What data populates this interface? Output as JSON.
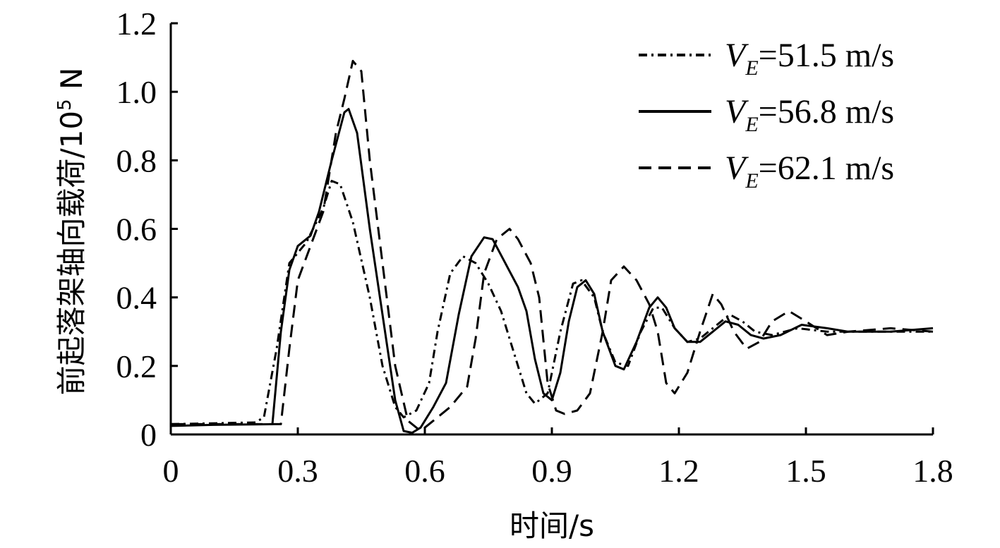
{
  "chart_data": {
    "type": "line",
    "xlabel": "时间/s",
    "ylabel_main": "前起落架轴向载荷/10",
    "ylabel_exp": "5",
    "ylabel_unit": " N",
    "xlim": [
      0,
      1.8
    ],
    "ylim": [
      0,
      1.2
    ],
    "x_ticks": [
      "0",
      "0.3",
      "0.6",
      "0.9",
      "1.2",
      "1.5",
      "1.8"
    ],
    "y_ticks": [
      "0",
      "0.2",
      "0.4",
      "0.6",
      "0.8",
      "1.0",
      "1.2"
    ],
    "grid": false,
    "legend_position": "top-right",
    "series": [
      {
        "name": "V_E=51.5 m/s",
        "legend_var": "V",
        "legend_sub": "E",
        "legend_val": "=51.5 m/s",
        "style": "dashdot",
        "points": [
          [
            0,
            0.03
          ],
          [
            0.2,
            0.035
          ],
          [
            0.22,
            0.05
          ],
          [
            0.25,
            0.25
          ],
          [
            0.28,
            0.5
          ],
          [
            0.32,
            0.56
          ],
          [
            0.36,
            0.66
          ],
          [
            0.38,
            0.74
          ],
          [
            0.4,
            0.73
          ],
          [
            0.43,
            0.62
          ],
          [
            0.47,
            0.4
          ],
          [
            0.5,
            0.2
          ],
          [
            0.53,
            0.08
          ],
          [
            0.55,
            0.05
          ],
          [
            0.58,
            0.07
          ],
          [
            0.61,
            0.15
          ],
          [
            0.63,
            0.3
          ],
          [
            0.66,
            0.47
          ],
          [
            0.69,
            0.52
          ],
          [
            0.72,
            0.5
          ],
          [
            0.75,
            0.44
          ],
          [
            0.78,
            0.36
          ],
          [
            0.81,
            0.24
          ],
          [
            0.84,
            0.12
          ],
          [
            0.86,
            0.09
          ],
          [
            0.89,
            0.12
          ],
          [
            0.92,
            0.3
          ],
          [
            0.95,
            0.44
          ],
          [
            0.97,
            0.45
          ],
          [
            1.0,
            0.4
          ],
          [
            1.02,
            0.3
          ],
          [
            1.05,
            0.21
          ],
          [
            1.08,
            0.2
          ],
          [
            1.11,
            0.3
          ],
          [
            1.14,
            0.37
          ],
          [
            1.16,
            0.37
          ],
          [
            1.19,
            0.31
          ],
          [
            1.22,
            0.27
          ],
          [
            1.25,
            0.28
          ],
          [
            1.28,
            0.31
          ],
          [
            1.32,
            0.35
          ],
          [
            1.35,
            0.33
          ],
          [
            1.38,
            0.3
          ],
          [
            1.42,
            0.29
          ],
          [
            1.48,
            0.31
          ],
          [
            1.55,
            0.3
          ],
          [
            1.65,
            0.3
          ],
          [
            1.8,
            0.3
          ]
        ]
      },
      {
        "name": "V_E=56.8 m/s",
        "legend_var": "V",
        "legend_sub": "E",
        "legend_val": "=56.8 m/s",
        "style": "solid",
        "points": [
          [
            0,
            0.025
          ],
          [
            0.1,
            0.028
          ],
          [
            0.24,
            0.03
          ],
          [
            0.26,
            0.3
          ],
          [
            0.28,
            0.48
          ],
          [
            0.3,
            0.55
          ],
          [
            0.33,
            0.58
          ],
          [
            0.35,
            0.65
          ],
          [
            0.38,
            0.8
          ],
          [
            0.41,
            0.94
          ],
          [
            0.42,
            0.95
          ],
          [
            0.44,
            0.88
          ],
          [
            0.47,
            0.6
          ],
          [
            0.5,
            0.35
          ],
          [
            0.53,
            0.1
          ],
          [
            0.55,
            0.01
          ],
          [
            0.57,
            0.005
          ],
          [
            0.59,
            0.02
          ],
          [
            0.62,
            0.08
          ],
          [
            0.65,
            0.15
          ],
          [
            0.68,
            0.35
          ],
          [
            0.71,
            0.52
          ],
          [
            0.74,
            0.575
          ],
          [
            0.76,
            0.57
          ],
          [
            0.79,
            0.5
          ],
          [
            0.82,
            0.43
          ],
          [
            0.84,
            0.36
          ],
          [
            0.86,
            0.22
          ],
          [
            0.88,
            0.12
          ],
          [
            0.9,
            0.1
          ],
          [
            0.92,
            0.18
          ],
          [
            0.94,
            0.33
          ],
          [
            0.96,
            0.43
          ],
          [
            0.98,
            0.45
          ],
          [
            1.0,
            0.41
          ],
          [
            1.02,
            0.3
          ],
          [
            1.05,
            0.2
          ],
          [
            1.07,
            0.19
          ],
          [
            1.1,
            0.27
          ],
          [
            1.13,
            0.37
          ],
          [
            1.15,
            0.4
          ],
          [
            1.17,
            0.37
          ],
          [
            1.19,
            0.31
          ],
          [
            1.22,
            0.27
          ],
          [
            1.25,
            0.27
          ],
          [
            1.28,
            0.3
          ],
          [
            1.31,
            0.33
          ],
          [
            1.34,
            0.32
          ],
          [
            1.37,
            0.29
          ],
          [
            1.4,
            0.28
          ],
          [
            1.44,
            0.29
          ],
          [
            1.49,
            0.32
          ],
          [
            1.55,
            0.31
          ],
          [
            1.6,
            0.3
          ],
          [
            1.7,
            0.3
          ],
          [
            1.8,
            0.31
          ]
        ]
      },
      {
        "name": "V_E=62.1 m/s",
        "legend_var": "V",
        "legend_sub": "E",
        "legend_val": "=62.1 m/s",
        "style": "dashed",
        "points": [
          [
            0,
            0.03
          ],
          [
            0.24,
            0.03
          ],
          [
            0.26,
            0.03
          ],
          [
            0.28,
            0.25
          ],
          [
            0.3,
            0.45
          ],
          [
            0.33,
            0.55
          ],
          [
            0.36,
            0.65
          ],
          [
            0.39,
            0.88
          ],
          [
            0.41,
            0.98
          ],
          [
            0.43,
            1.09
          ],
          [
            0.45,
            1.06
          ],
          [
            0.47,
            0.8
          ],
          [
            0.5,
            0.5
          ],
          [
            0.53,
            0.2
          ],
          [
            0.56,
            0.04
          ],
          [
            0.59,
            0.01
          ],
          [
            0.62,
            0.04
          ],
          [
            0.66,
            0.08
          ],
          [
            0.7,
            0.14
          ],
          [
            0.72,
            0.28
          ],
          [
            0.74,
            0.47
          ],
          [
            0.77,
            0.57
          ],
          [
            0.8,
            0.6
          ],
          [
            0.82,
            0.57
          ],
          [
            0.85,
            0.5
          ],
          [
            0.87,
            0.4
          ],
          [
            0.89,
            0.15
          ],
          [
            0.91,
            0.07
          ],
          [
            0.93,
            0.06
          ],
          [
            0.96,
            0.07
          ],
          [
            0.99,
            0.12
          ],
          [
            1.02,
            0.3
          ],
          [
            1.04,
            0.45
          ],
          [
            1.07,
            0.49
          ],
          [
            1.1,
            0.45
          ],
          [
            1.13,
            0.38
          ],
          [
            1.15,
            0.3
          ],
          [
            1.17,
            0.15
          ],
          [
            1.19,
            0.12
          ],
          [
            1.22,
            0.18
          ],
          [
            1.25,
            0.3
          ],
          [
            1.28,
            0.41
          ],
          [
            1.3,
            0.38
          ],
          [
            1.33,
            0.3
          ],
          [
            1.36,
            0.25
          ],
          [
            1.39,
            0.27
          ],
          [
            1.42,
            0.33
          ],
          [
            1.46,
            0.36
          ],
          [
            1.5,
            0.33
          ],
          [
            1.55,
            0.29
          ],
          [
            1.6,
            0.3
          ],
          [
            1.7,
            0.31
          ],
          [
            1.8,
            0.3
          ]
        ]
      }
    ]
  }
}
